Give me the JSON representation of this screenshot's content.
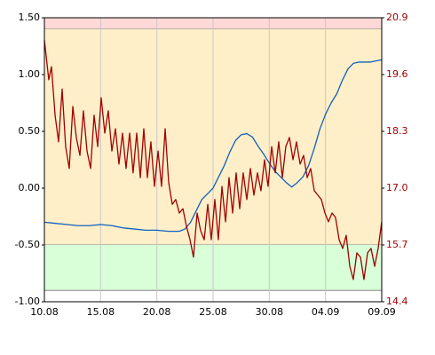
{
  "chart_data": {
    "type": "line",
    "xlim": [
      0,
      30
    ],
    "xticks": [
      {
        "value": 0,
        "label": "10.08"
      },
      {
        "value": 5,
        "label": "15.08"
      },
      {
        "value": 10,
        "label": "20.08"
      },
      {
        "value": 15,
        "label": "25.08"
      },
      {
        "value": 20,
        "label": "30.08"
      },
      {
        "value": 25,
        "label": "04.09"
      },
      {
        "value": 30,
        "label": "09.09"
      }
    ],
    "ylim": [
      -1,
      1.5
    ],
    "yticks": [
      {
        "value": 1.5,
        "label": "1.50"
      },
      {
        "value": 1,
        "label": "1.00"
      },
      {
        "value": 0.5,
        "label": "0.50"
      },
      {
        "value": 0,
        "label": "0.00"
      },
      {
        "value": -0.5,
        "label": "-0.50"
      },
      {
        "value": -1,
        "label": "-1.00"
      }
    ],
    "y2lim": [
      14.4,
      20.9
    ],
    "y2ticks": [
      20.9,
      19.6,
      18.3,
      {
        "value": 17,
        "label": "17.0"
      },
      15.7,
      14.4
    ],
    "bands": [
      {
        "from": 1.4,
        "to": 1.5,
        "color": "#ffd8d8"
      },
      {
        "from": -0.5,
        "to": 1.4,
        "color": "#ffefc8"
      },
      {
        "from": -0.9,
        "to": -0.5,
        "color": "#d8ffd8"
      }
    ],
    "grid": true,
    "series": [
      {
        "color": "#1060c0",
        "axis": "y",
        "x": [
          0,
          1,
          2,
          3,
          4,
          5,
          6,
          7,
          8,
          9,
          10,
          11,
          12,
          12.5,
          13,
          13.5,
          14,
          14.5,
          15,
          15.5,
          16,
          16.5,
          17,
          17.5,
          18,
          18.5,
          19,
          19.5,
          20,
          20.5,
          21,
          21.5,
          22,
          22.5,
          23,
          23.5,
          24,
          24.5,
          25,
          25.5,
          26,
          26.5,
          27,
          27.5,
          28,
          29,
          30
        ],
        "values": [
          -0.3,
          -0.31,
          -0.32,
          -0.33,
          -0.33,
          -0.32,
          -0.33,
          -0.35,
          -0.36,
          -0.37,
          -0.37,
          -0.38,
          -0.38,
          -0.36,
          -0.3,
          -0.2,
          -0.1,
          -0.05,
          0.0,
          0.1,
          0.2,
          0.32,
          0.42,
          0.47,
          0.48,
          0.45,
          0.37,
          0.3,
          0.22,
          0.15,
          0.1,
          0.05,
          0.01,
          0.05,
          0.1,
          0.2,
          0.35,
          0.52,
          0.65,
          0.75,
          0.83,
          0.95,
          1.05,
          1.1,
          1.11,
          1.11,
          1.13
        ]
      },
      {
        "color": "#a00000",
        "axis": "y2",
        "x": [
          0,
          0.39,
          0.63,
          0.95,
          1.26,
          1.58,
          1.89,
          2.21,
          2.53,
          2.84,
          3.16,
          3.47,
          3.79,
          4.11,
          4.42,
          4.74,
          5.05,
          5.37,
          5.68,
          6.0,
          6.32,
          6.63,
          6.95,
          7.26,
          7.58,
          7.89,
          8.21,
          8.53,
          8.84,
          9.16,
          9.47,
          9.79,
          10.11,
          10.42,
          10.74,
          11.05,
          11.37,
          11.68,
          12.0,
          12.32,
          12.63,
          12.95,
          13.26,
          13.58,
          13.89,
          14.21,
          14.53,
          14.84,
          15.16,
          15.47,
          15.79,
          16.11,
          16.42,
          16.74,
          17.05,
          17.37,
          17.68,
          18.0,
          18.32,
          18.63,
          18.95,
          19.26,
          19.58,
          19.89,
          20.21,
          20.53,
          20.84,
          21.16,
          21.47,
          21.79,
          22.11,
          22.42,
          22.74,
          23.05,
          23.37,
          23.68,
          24.0,
          24.32,
          24.63,
          24.95,
          25.26,
          25.58,
          25.89,
          26.21,
          26.53,
          26.84,
          27.16,
          27.47,
          27.79,
          28.11,
          28.42,
          28.74,
          29.05,
          29.37,
          29.68,
          30.0
        ],
        "values": [
          20.39,
          19.48,
          19.78,
          18.67,
          18.06,
          19.27,
          17.95,
          17.45,
          18.87,
          18.16,
          17.75,
          18.77,
          17.85,
          17.45,
          18.67,
          17.95,
          19.07,
          18.26,
          18.77,
          17.85,
          18.36,
          17.55,
          18.26,
          17.45,
          18.26,
          17.35,
          18.26,
          17.24,
          18.36,
          17.24,
          18.06,
          17.04,
          17.85,
          17.04,
          18.36,
          17.14,
          16.63,
          16.74,
          16.43,
          16.53,
          16.13,
          15.82,
          15.42,
          16.43,
          16.03,
          15.82,
          16.63,
          15.82,
          16.74,
          15.82,
          17.04,
          16.23,
          17.24,
          16.43,
          17.35,
          16.53,
          17.35,
          16.74,
          17.45,
          16.84,
          17.35,
          16.94,
          17.65,
          17.04,
          17.95,
          17.35,
          18.06,
          17.24,
          17.95,
          18.16,
          17.65,
          18.06,
          17.55,
          17.75,
          17.24,
          17.45,
          16.94,
          16.84,
          16.74,
          16.43,
          16.23,
          16.43,
          16.33,
          15.82,
          15.62,
          15.92,
          15.21,
          14.91,
          15.52,
          15.42,
          14.91,
          15.52,
          15.62,
          15.21,
          15.62,
          16.23
        ]
      }
    ]
  }
}
